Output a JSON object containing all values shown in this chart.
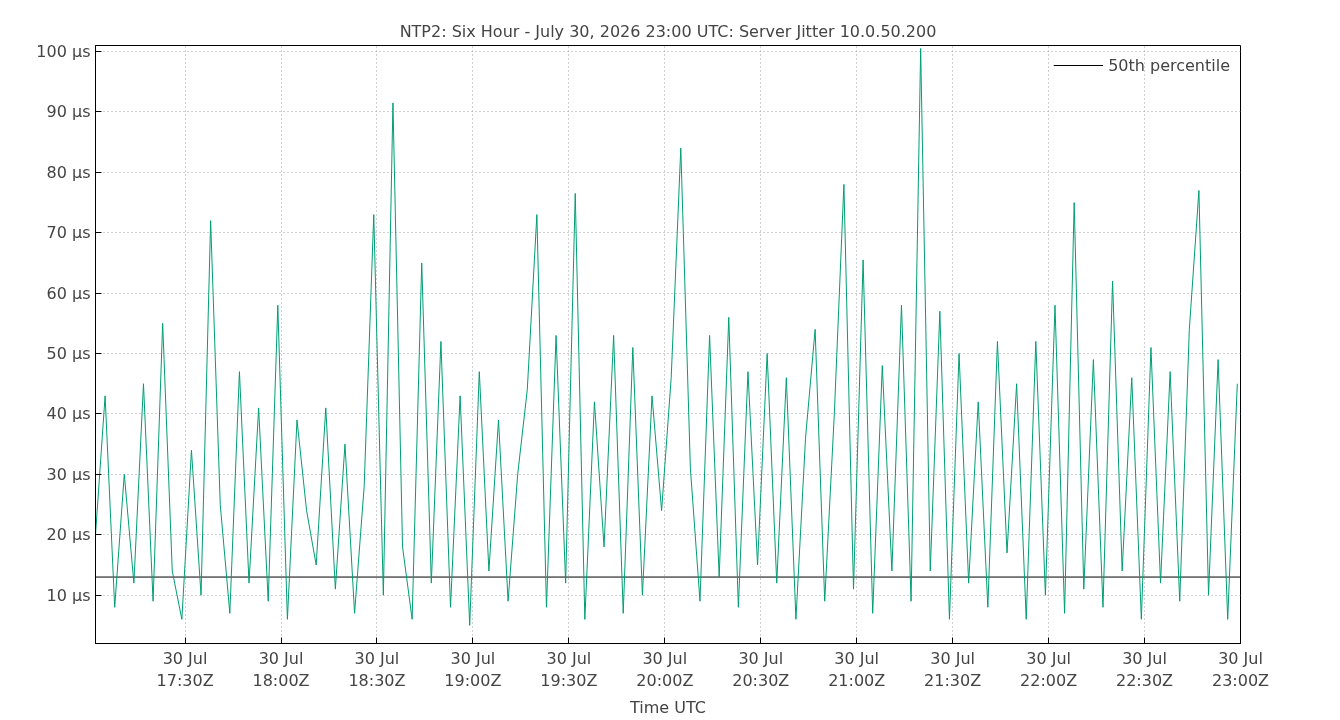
{
  "chart_data": {
    "type": "line",
    "title": "NTP2: Six Hour - July 30, 2026 23:00 UTC: Server Jitter 10.0.50.200",
    "xlabel": "Time UTC",
    "x": [
      "2026-07-30T17:02",
      "2026-07-30T17:05",
      "2026-07-30T17:08",
      "2026-07-30T17:11",
      "2026-07-30T17:14",
      "2026-07-30T17:17",
      "2026-07-30T17:20",
      "2026-07-30T17:23",
      "2026-07-30T17:26",
      "2026-07-30T17:29",
      "2026-07-30T17:32",
      "2026-07-30T17:35",
      "2026-07-30T17:38",
      "2026-07-30T17:41",
      "2026-07-30T17:44",
      "2026-07-30T17:47",
      "2026-07-30T17:50",
      "2026-07-30T17:53",
      "2026-07-30T17:56",
      "2026-07-30T17:59",
      "2026-07-30T18:02",
      "2026-07-30T18:05",
      "2026-07-30T18:08",
      "2026-07-30T18:11",
      "2026-07-30T18:14",
      "2026-07-30T18:17",
      "2026-07-30T18:20",
      "2026-07-30T18:23",
      "2026-07-30T18:26",
      "2026-07-30T18:29",
      "2026-07-30T18:32",
      "2026-07-30T18:35",
      "2026-07-30T18:38",
      "2026-07-30T18:41",
      "2026-07-30T18:44",
      "2026-07-30T18:47",
      "2026-07-30T18:50",
      "2026-07-30T18:53",
      "2026-07-30T18:56",
      "2026-07-30T18:59",
      "2026-07-30T19:02",
      "2026-07-30T19:05",
      "2026-07-30T19:08",
      "2026-07-30T19:11",
      "2026-07-30T19:14",
      "2026-07-30T19:17",
      "2026-07-30T19:20",
      "2026-07-30T19:23",
      "2026-07-30T19:26",
      "2026-07-30T19:29",
      "2026-07-30T19:32",
      "2026-07-30T19:35",
      "2026-07-30T19:38",
      "2026-07-30T19:41",
      "2026-07-30T19:44",
      "2026-07-30T19:47",
      "2026-07-30T19:50",
      "2026-07-30T19:53",
      "2026-07-30T19:56",
      "2026-07-30T19:59",
      "2026-07-30T20:02",
      "2026-07-30T20:05",
      "2026-07-30T20:08",
      "2026-07-30T20:11",
      "2026-07-30T20:14",
      "2026-07-30T20:17",
      "2026-07-30T20:20",
      "2026-07-30T20:23",
      "2026-07-30T20:26",
      "2026-07-30T20:29",
      "2026-07-30T20:32",
      "2026-07-30T20:35",
      "2026-07-30T20:38",
      "2026-07-30T20:41",
      "2026-07-30T20:44",
      "2026-07-30T20:47",
      "2026-07-30T20:50",
      "2026-07-30T20:53",
      "2026-07-30T20:56",
      "2026-07-30T20:59",
      "2026-07-30T21:02",
      "2026-07-30T21:05",
      "2026-07-30T21:08",
      "2026-07-30T21:11",
      "2026-07-30T21:14",
      "2026-07-30T21:17",
      "2026-07-30T21:20",
      "2026-07-30T21:23",
      "2026-07-30T21:26",
      "2026-07-30T21:29",
      "2026-07-30T21:32",
      "2026-07-30T21:35",
      "2026-07-30T21:38",
      "2026-07-30T21:41",
      "2026-07-30T21:44",
      "2026-07-30T21:47",
      "2026-07-30T21:50",
      "2026-07-30T21:53",
      "2026-07-30T21:56",
      "2026-07-30T21:59",
      "2026-07-30T22:02",
      "2026-07-30T22:05",
      "2026-07-30T22:08",
      "2026-07-30T22:11",
      "2026-07-30T22:14",
      "2026-07-30T22:17",
      "2026-07-30T22:20",
      "2026-07-30T22:23",
      "2026-07-30T22:26",
      "2026-07-30T22:29",
      "2026-07-30T22:32",
      "2026-07-30T22:35",
      "2026-07-30T22:38",
      "2026-07-30T22:41",
      "2026-07-30T22:44",
      "2026-07-30T22:47",
      "2026-07-30T22:50",
      "2026-07-30T22:53",
      "2026-07-30T22:56",
      "2026-07-30T22:59"
    ],
    "series": [
      {
        "name": "50th percentile",
        "color": "#000000",
        "x": [
          "2026-07-30T17:02",
          "2026-07-30T23:00"
        ],
        "values": [
          13,
          13
        ]
      },
      {
        "color": "#009e73",
        "values": [
          20,
          43,
          8,
          30,
          12,
          45,
          9,
          55,
          14,
          6,
          34,
          10,
          72,
          25,
          7,
          47,
          12,
          41,
          9,
          58,
          6,
          39,
          24,
          15,
          41,
          11,
          35,
          7,
          28,
          73,
          10,
          91.5,
          18,
          6,
          65,
          12,
          52,
          8,
          43,
          5,
          47,
          14,
          39,
          9,
          30,
          44,
          73,
          8,
          53,
          12,
          76.5,
          6,
          42,
          18,
          53,
          7,
          51,
          10,
          43,
          24,
          46,
          84,
          31,
          9,
          53,
          13,
          56,
          8,
          47,
          15,
          50,
          12,
          46,
          6,
          36,
          54,
          9,
          40,
          78,
          11,
          65.5,
          7,
          48,
          14,
          58,
          9,
          100.5,
          14,
          57,
          6,
          50,
          12,
          42,
          8,
          52,
          17,
          45,
          6,
          52,
          10,
          58,
          7,
          75,
          11,
          49,
          8,
          62,
          14,
          46,
          6,
          51,
          12,
          47,
          9,
          54,
          77,
          10,
          49,
          6,
          45
        ]
      }
    ],
    "xlim": [
      "2026-07-30T17:02",
      "2026-07-30T23:00"
    ],
    "xticks": [
      {
        "value": "2026-07-30T17:30",
        "label": "30 Jul\n17:30Z"
      },
      {
        "value": "2026-07-30T18:00",
        "label": "30 Jul\n18:00Z"
      },
      {
        "value": "2026-07-30T18:30",
        "label": "30 Jul\n18:30Z"
      },
      {
        "value": "2026-07-30T19:00",
        "label": "30 Jul\n19:00Z"
      },
      {
        "value": "2026-07-30T19:30",
        "label": "30 Jul\n19:30Z"
      },
      {
        "value": "2026-07-30T20:00",
        "label": "30 Jul\n20:00Z"
      },
      {
        "value": "2026-07-30T20:30",
        "label": "30 Jul\n20:30Z"
      },
      {
        "value": "2026-07-30T21:00",
        "label": "30 Jul\n21:00Z"
      },
      {
        "value": "2026-07-30T21:30",
        "label": "30 Jul\n21:30Z"
      },
      {
        "value": "2026-07-30T22:00",
        "label": "30 Jul\n22:00Z"
      },
      {
        "value": "2026-07-30T22:30",
        "label": "30 Jul\n22:30Z"
      },
      {
        "value": "2026-07-30T23:00",
        "label": "30 Jul\n23:00Z"
      }
    ],
    "ylim": [
      2,
      101
    ],
    "yticks": [
      {
        "value": 10,
        "label": "10 µs"
      },
      {
        "value": 20,
        "label": "20 µs"
      },
      {
        "value": 30,
        "label": "30 µs"
      },
      {
        "value": 40,
        "label": "40 µs"
      },
      {
        "value": 50,
        "label": "50 µs"
      },
      {
        "value": 60,
        "label": "60 µs"
      },
      {
        "value": 70,
        "label": "70 µs"
      },
      {
        "value": 80,
        "label": "80 µs"
      },
      {
        "value": 90,
        "label": "90 µs"
      },
      {
        "value": 100,
        "label": "100 µs"
      }
    ],
    "grid": true,
    "legend": "top right",
    "line_style": "solid",
    "marker": "none"
  }
}
